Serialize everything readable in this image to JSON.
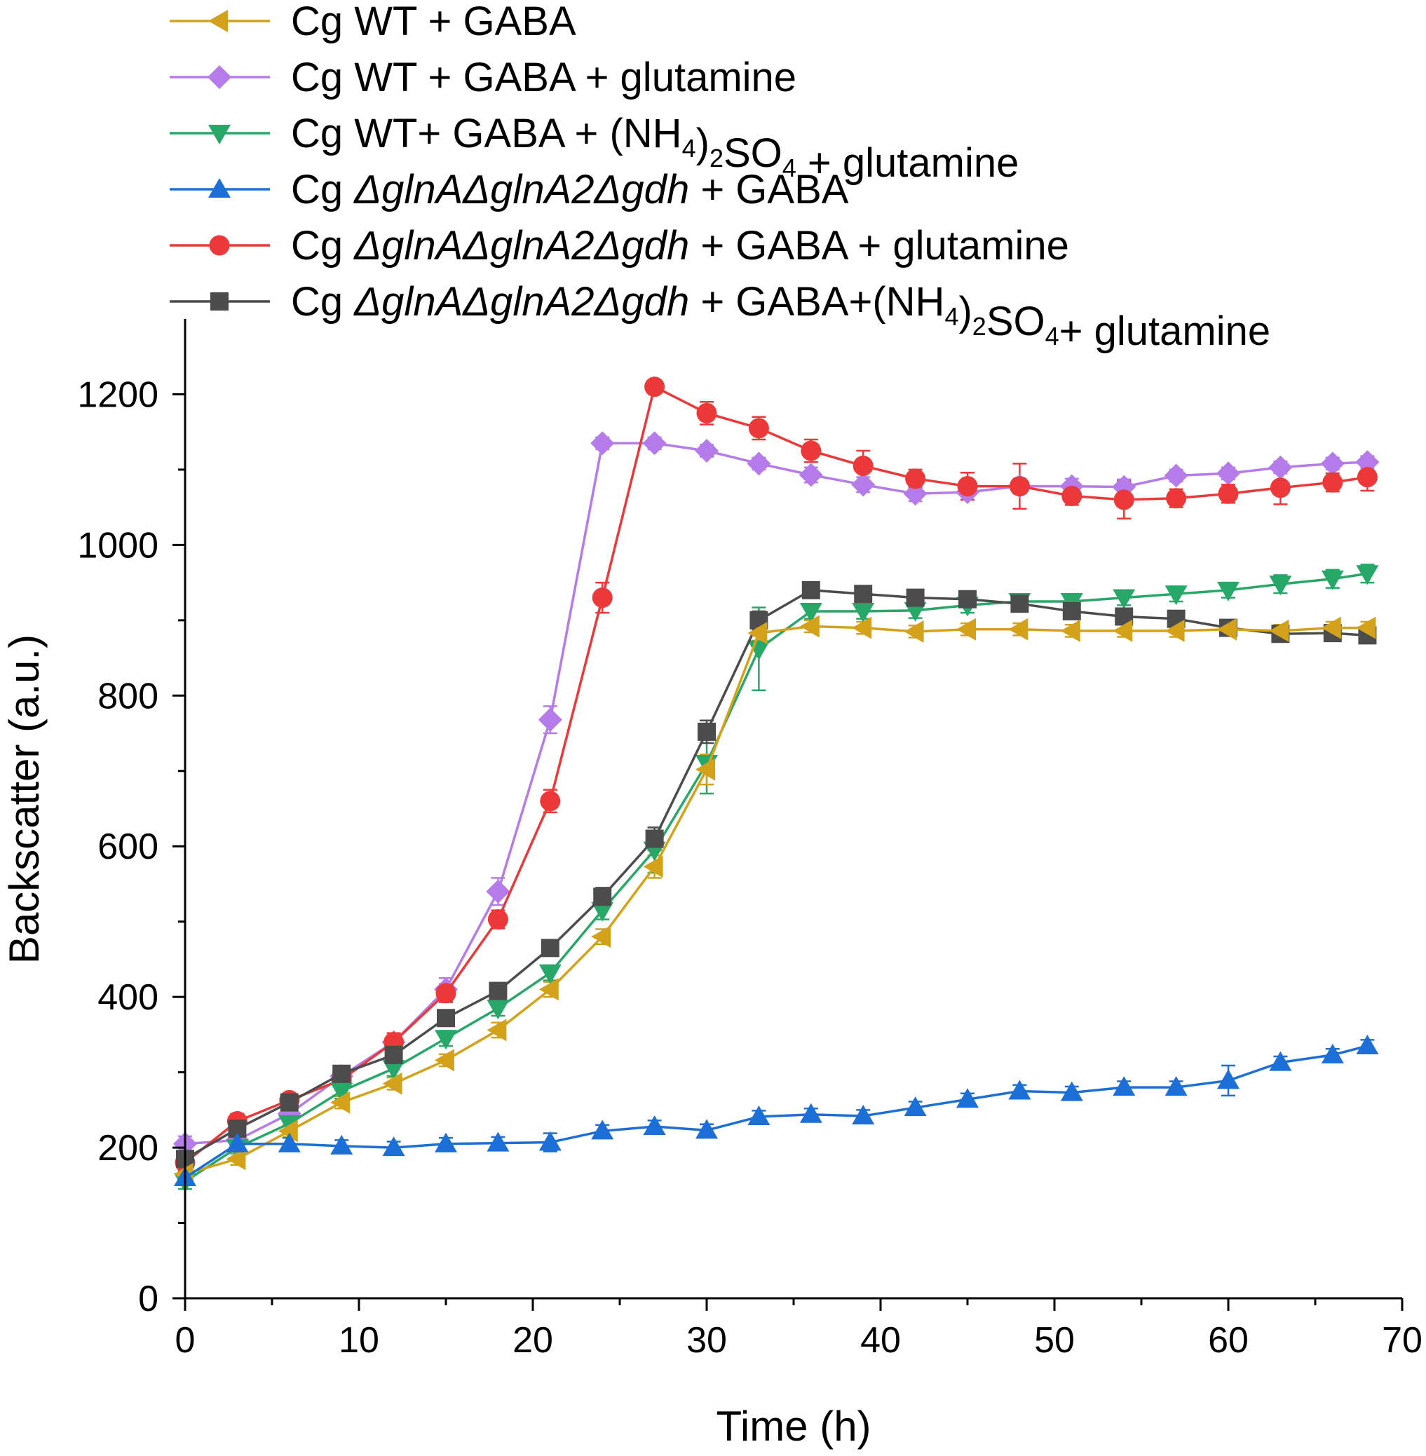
{
  "chart_data": {
    "type": "line",
    "title": "",
    "xlabel": "Time (h)",
    "ylabel": "Backscatter (a.u.)",
    "xlim": [
      0,
      70
    ],
    "ylim": [
      0,
      1300
    ],
    "xticks": [
      0,
      10,
      20,
      30,
      40,
      50,
      60,
      70
    ],
    "xtick_labels": [
      "0",
      "10",
      "20",
      "30",
      "40",
      "50",
      "60",
      "70"
    ],
    "yticks": [
      0,
      200,
      400,
      600,
      800,
      1000,
      1200
    ],
    "ytick_labels": [
      "0",
      "200",
      "400",
      "600",
      "800",
      "1000",
      "1200"
    ],
    "grid": false,
    "legend_position": "top",
    "x": [
      0,
      3,
      6,
      9,
      12,
      15,
      18,
      21,
      24,
      27,
      30,
      33,
      36,
      39,
      42,
      45,
      48,
      51,
      54,
      57,
      60,
      63,
      66,
      68
    ],
    "series": [
      {
        "name": "Cg WT + GABA + glutamine",
        "color": "#b57bea",
        "marker": "diamond",
        "legend_parts": [
          {
            "t": "Cg WT + GABA + glutamine",
            "s": "n"
          }
        ],
        "values": [
          205,
          210,
          245,
          295,
          340,
          410,
          540,
          768,
          1135,
          1135,
          1125,
          1108,
          1093,
          1080,
          1068,
          1070,
          1078,
          1078,
          1077,
          1092,
          1095,
          1103,
          1108,
          1110
        ],
        "errors": [
          10,
          8,
          10,
          10,
          12,
          15,
          18,
          18,
          8,
          8,
          8,
          8,
          10,
          10,
          10,
          10,
          10,
          10,
          10,
          8,
          8,
          8,
          8,
          8
        ]
      },
      {
        "name": "Cg ΔglnAΔglnA2Δgdh + GABA + glutamine",
        "color": "#ec3838",
        "marker": "circle",
        "legend_parts": [
          {
            "t": "Cg ",
            "s": "n"
          },
          {
            "t": "ΔglnAΔglnA2Δgdh",
            "s": "i"
          },
          {
            "t": " + GABA + glutamine",
            "s": "n"
          }
        ],
        "values": [
          180,
          235,
          263,
          290,
          340,
          405,
          503,
          660,
          930,
          1210,
          1175,
          1155,
          1125,
          1105,
          1088,
          1078,
          1078,
          1065,
          1060,
          1062,
          1068,
          1076,
          1083,
          1090
        ],
        "errors": [
          10,
          10,
          8,
          8,
          12,
          12,
          12,
          15,
          20,
          8,
          15,
          15,
          15,
          20,
          12,
          18,
          30,
          12,
          25,
          12,
          12,
          22,
          12,
          18
        ]
      },
      {
        "name": "Cg WT+ GABA + (NH4)2SO4 + glutamine",
        "color": "#27a869",
        "marker": "triangle-down",
        "legend_parts": [
          {
            "t": "Cg WT+ GABA + (NH",
            "s": "n"
          },
          {
            "t": "4",
            "s": "sub"
          },
          {
            "t": ")",
            "s": "n"
          },
          {
            "t": "2",
            "s": "sub"
          },
          {
            "t": "SO",
            "s": "n"
          },
          {
            "t": "4",
            "s": "sub"
          },
          {
            "t": " + glutamine",
            "s": "n"
          }
        ],
        "values": [
          155,
          200,
          232,
          275,
          305,
          345,
          385,
          432,
          515,
          595,
          710,
          862,
          912,
          912,
          913,
          920,
          925,
          925,
          930,
          935,
          940,
          948,
          955,
          962
        ],
        "errors": [
          10,
          8,
          8,
          10,
          10,
          10,
          10,
          10,
          12,
          30,
          40,
          55,
          10,
          10,
          10,
          10,
          10,
          10,
          10,
          10,
          10,
          12,
          12,
          12
        ]
      },
      {
        "name": "Cg ΔglnAΔglnA2Δgdh + GABA+(NH4)2SO4+ glutamine",
        "color": "#4c4c4c",
        "marker": "square",
        "legend_parts": [
          {
            "t": "Cg ",
            "s": "n"
          },
          {
            "t": "ΔglnAΔglnA2Δgdh",
            "s": "i"
          },
          {
            "t": " + GABA+(NH",
            "s": "n"
          },
          {
            "t": "4",
            "s": "sub"
          },
          {
            "t": ")",
            "s": "n"
          },
          {
            "t": "2",
            "s": "sub"
          },
          {
            "t": "SO",
            "s": "n"
          },
          {
            "t": "4",
            "s": "sub"
          },
          {
            "t": "+ glutamine",
            "s": "n"
          }
        ],
        "values": [
          185,
          225,
          260,
          298,
          323,
          372,
          408,
          465,
          533,
          610,
          752,
          900,
          940,
          935,
          930,
          928,
          922,
          912,
          905,
          902,
          890,
          882,
          883,
          880
        ],
        "errors": [
          8,
          8,
          8,
          8,
          10,
          10,
          10,
          10,
          12,
          15,
          15,
          12,
          8,
          8,
          8,
          8,
          8,
          10,
          10,
          10,
          10,
          8,
          8,
          8
        ]
      },
      {
        "name": "Cg WT + GABA",
        "color": "#d4a21a",
        "marker": "triangle-left",
        "legend_parts": [
          {
            "t": "Cg WT + GABA",
            "s": "n"
          }
        ],
        "values": [
          165,
          185,
          222,
          260,
          285,
          316,
          356,
          410,
          480,
          573,
          702,
          883,
          892,
          890,
          885,
          888,
          888,
          886,
          886,
          886,
          888,
          886,
          890,
          890
        ],
        "errors": [
          10,
          8,
          8,
          8,
          8,
          8,
          10,
          10,
          10,
          15,
          20,
          10,
          8,
          8,
          8,
          8,
          8,
          8,
          8,
          8,
          8,
          8,
          8,
          8
        ]
      },
      {
        "name": "Cg ΔglnAΔglnA2Δgdh + GABA",
        "color": "#1b6fd6",
        "marker": "triangle-up",
        "legend_parts": [
          {
            "t": "Cg ",
            "s": "n"
          },
          {
            "t": "ΔglnAΔglnA2Δgdh",
            "s": "i"
          },
          {
            "t": " + GABA",
            "s": "n"
          }
        ],
        "values": [
          160,
          205,
          205,
          202,
          200,
          205,
          206,
          207,
          222,
          228,
          223,
          241,
          244,
          242,
          253,
          264,
          275,
          273,
          280,
          280,
          289,
          313,
          323,
          335
        ],
        "errors": [
          8,
          8,
          8,
          8,
          8,
          8,
          8,
          12,
          8,
          8,
          8,
          8,
          8,
          8,
          8,
          8,
          8,
          8,
          8,
          8,
          20,
          8,
          8,
          8
        ]
      }
    ],
    "legend_order": [
      4,
      0,
      2,
      5,
      1,
      3
    ]
  }
}
